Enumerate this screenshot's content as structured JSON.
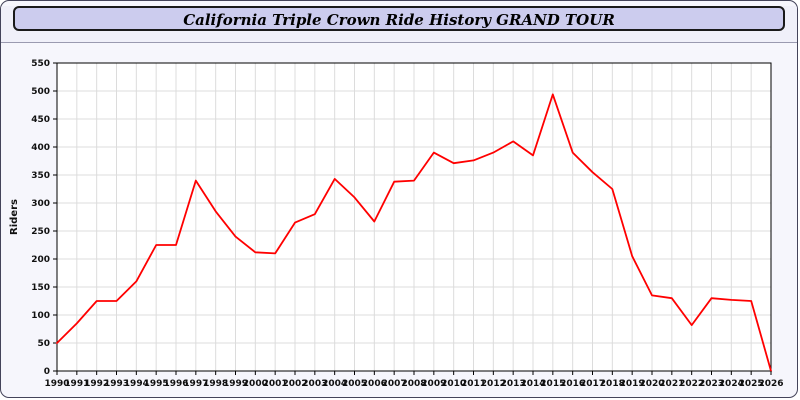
{
  "header": {
    "title": "California Triple Crown Ride History GRAND TOUR"
  },
  "colors": {
    "line": "#ff0000",
    "grid": "#dcdcdc",
    "plot_border": "#000000",
    "title_bg": "#ccccee",
    "page_bg": "#f6f6fc"
  },
  "chart_data": {
    "type": "line",
    "title": "California Triple Crown Ride History GRAND TOUR",
    "xlabel": "",
    "ylabel": "Riders",
    "ylim": [
      0,
      550
    ],
    "ytick_step": 50,
    "grid": true,
    "legend": false,
    "x": [
      1990,
      1991,
      1992,
      1993,
      1994,
      1995,
      1996,
      1997,
      1998,
      1999,
      2000,
      2001,
      2002,
      2003,
      2004,
      2005,
      2006,
      2007,
      2008,
      2009,
      2010,
      2011,
      2012,
      2013,
      2014,
      2015,
      2016,
      2017,
      2018,
      2019,
      2020,
      2021,
      2022,
      2023,
      2024,
      2025,
      2026
    ],
    "series": [
      {
        "name": "Riders",
        "color": "#ff0000",
        "values": [
          50,
          85,
          125,
          125,
          160,
          225,
          225,
          340,
          285,
          240,
          212,
          210,
          265,
          280,
          343,
          310,
          267,
          338,
          340,
          390,
          371,
          376,
          390,
          410,
          385,
          494,
          390,
          355,
          325,
          205,
          135,
          130,
          82,
          130,
          127,
          125,
          0
        ]
      }
    ]
  }
}
